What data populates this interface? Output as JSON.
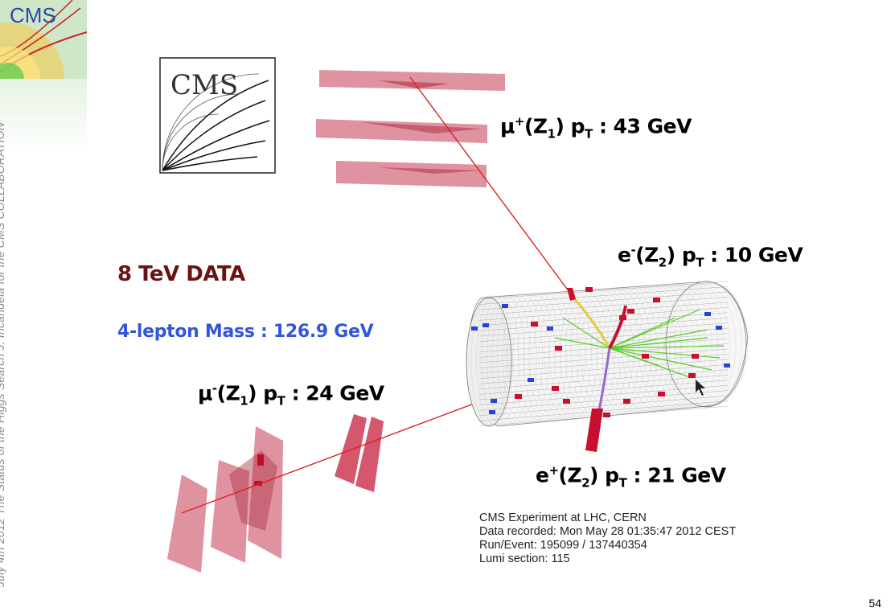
{
  "corner_logo": {
    "text": "CMS"
  },
  "side_caption": "July 4th 2012   The Status of the Higgs Search    J. Incandela for the CMS COLLABORATION",
  "cms_logo": {
    "text": "CMS"
  },
  "labels": {
    "data": "8 TeV DATA",
    "mass": "4-lepton Mass : 126.9 GeV",
    "mu_plus": {
      "prefix": "μ",
      "sup": "+",
      "mid": "(Z",
      "sub": "1",
      "post": ") p",
      "sub2": "T",
      "value": " : 43 GeV"
    },
    "e_minus": {
      "prefix": "e",
      "sup": "-",
      "mid": "(Z",
      "sub": "2",
      "post": ") p",
      "sub2": "T",
      "value": " : 10 GeV"
    },
    "mu_minus": {
      "prefix": "μ",
      "sup": "-",
      "mid": "(Z",
      "sub": "1",
      "post": ") p",
      "sub2": "T",
      "value": " : 24 GeV"
    },
    "e_plus": {
      "prefix": "e",
      "sup": "+",
      "mid": "(Z",
      "sub": "2",
      "post": ") p",
      "sub2": "T",
      "value": " : 21 GeV"
    }
  },
  "event_info": [
    "CMS Experiment at LHC, CERN",
    "Data recorded: Mon May 28 01:35:47 2012 CEST",
    "Run/Event: 195099 / 137440354",
    "Lumi section: 115"
  ],
  "page_number": "54",
  "colors": {
    "data": "#6b1212",
    "mass": "#3355dd",
    "muon_chamber": "#d9808f",
    "track_muon": "#dd2222",
    "track_green": "#55cc22"
  }
}
